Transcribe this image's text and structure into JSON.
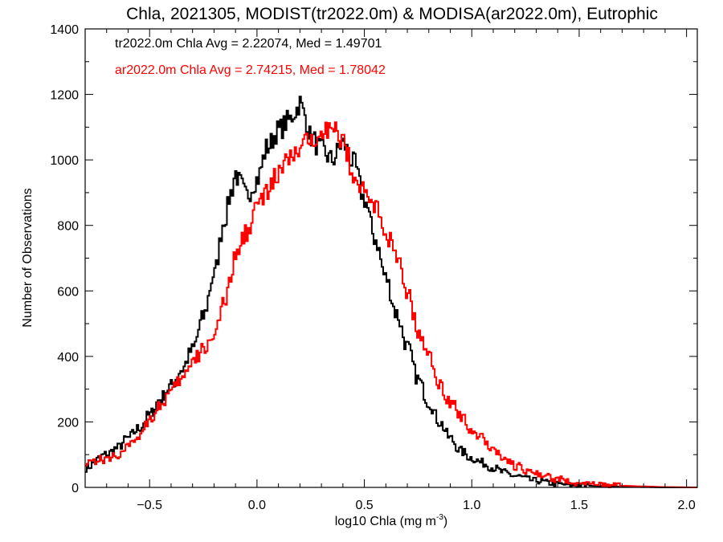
{
  "chart_data": {
    "type": "line",
    "title": "Chla, 2021305, MODIST(tr2022.0m) & MODISA(ar2022.0m), Eutrophic",
    "xlabel": "log10 Chla (mg m",
    "xlabel_sup": "-3",
    "xlabel_end": ")",
    "ylabel": "Number of Observations",
    "xlim": [
      -0.8,
      2.05
    ],
    "ylim": [
      0,
      1400
    ],
    "xticks": [
      -0.5,
      0.0,
      0.5,
      1.0,
      1.5,
      2.0
    ],
    "xtick_labels": [
      "−0.5",
      "0.0",
      "0.5",
      "1.0",
      "1.5",
      "2.0"
    ],
    "yticks": [
      0,
      200,
      400,
      600,
      800,
      1000,
      1200,
      1400
    ],
    "ytick_labels": [
      "0",
      "200",
      "400",
      "600",
      "800",
      "1000",
      "1200",
      "1400"
    ],
    "grid": false,
    "legend_position": "top-left",
    "series": [
      {
        "name": "tr2022.0m Chla Avg = 2.22074, Med = 1.49701",
        "color": "#000000",
        "style": "step",
        "x": [
          -0.8,
          -0.7,
          -0.65,
          -0.6,
          -0.55,
          -0.5,
          -0.45,
          -0.4,
          -0.35,
          -0.3,
          -0.25,
          -0.2,
          -0.15,
          -0.12,
          -0.1,
          -0.08,
          -0.05,
          0.0,
          0.05,
          0.1,
          0.15,
          0.18,
          0.2,
          0.22,
          0.25,
          0.3,
          0.35,
          0.4,
          0.45,
          0.5,
          0.55,
          0.6,
          0.65,
          0.7,
          0.75,
          0.8,
          0.85,
          0.9,
          0.95,
          1.0,
          1.05,
          1.1,
          1.15,
          1.2,
          1.3,
          1.4,
          1.5,
          1.6,
          1.7,
          1.8,
          1.9,
          2.05
        ],
        "y": [
          60,
          100,
          120,
          150,
          180,
          220,
          270,
          310,
          360,
          420,
          520,
          650,
          820,
          900,
          960,
          930,
          890,
          940,
          1040,
          1090,
          1120,
          1150,
          1175,
          1140,
          1070,
          1030,
          1000,
          1050,
          990,
          880,
          760,
          640,
          530,
          430,
          330,
          260,
          200,
          150,
          110,
          90,
          75,
          60,
          45,
          35,
          20,
          10,
          6,
          4,
          2,
          1,
          0,
          0
        ]
      },
      {
        "name": "ar2022.0m Chla Avg = 2.74215, Med = 1.78042",
        "color": "#ff0000",
        "style": "step",
        "x": [
          -0.8,
          -0.7,
          -0.65,
          -0.6,
          -0.55,
          -0.5,
          -0.45,
          -0.4,
          -0.35,
          -0.3,
          -0.25,
          -0.2,
          -0.15,
          -0.1,
          -0.05,
          0.0,
          0.05,
          0.1,
          0.15,
          0.2,
          0.25,
          0.3,
          0.35,
          0.4,
          0.45,
          0.5,
          0.55,
          0.6,
          0.65,
          0.7,
          0.75,
          0.8,
          0.85,
          0.9,
          0.95,
          1.0,
          1.05,
          1.1,
          1.15,
          1.2,
          1.3,
          1.4,
          1.5,
          1.6,
          1.7,
          1.8,
          1.9,
          2.05
        ],
        "y": [
          80,
          85,
          100,
          120,
          160,
          210,
          250,
          290,
          330,
          380,
          420,
          470,
          560,
          700,
          780,
          860,
          900,
          960,
          1000,
          1030,
          1060,
          1100,
          1090,
          1060,
          960,
          900,
          860,
          780,
          700,
          600,
          480,
          400,
          320,
          260,
          220,
          175,
          150,
          120,
          90,
          65,
          40,
          25,
          12,
          8,
          5,
          3,
          1,
          0
        ]
      }
    ]
  }
}
